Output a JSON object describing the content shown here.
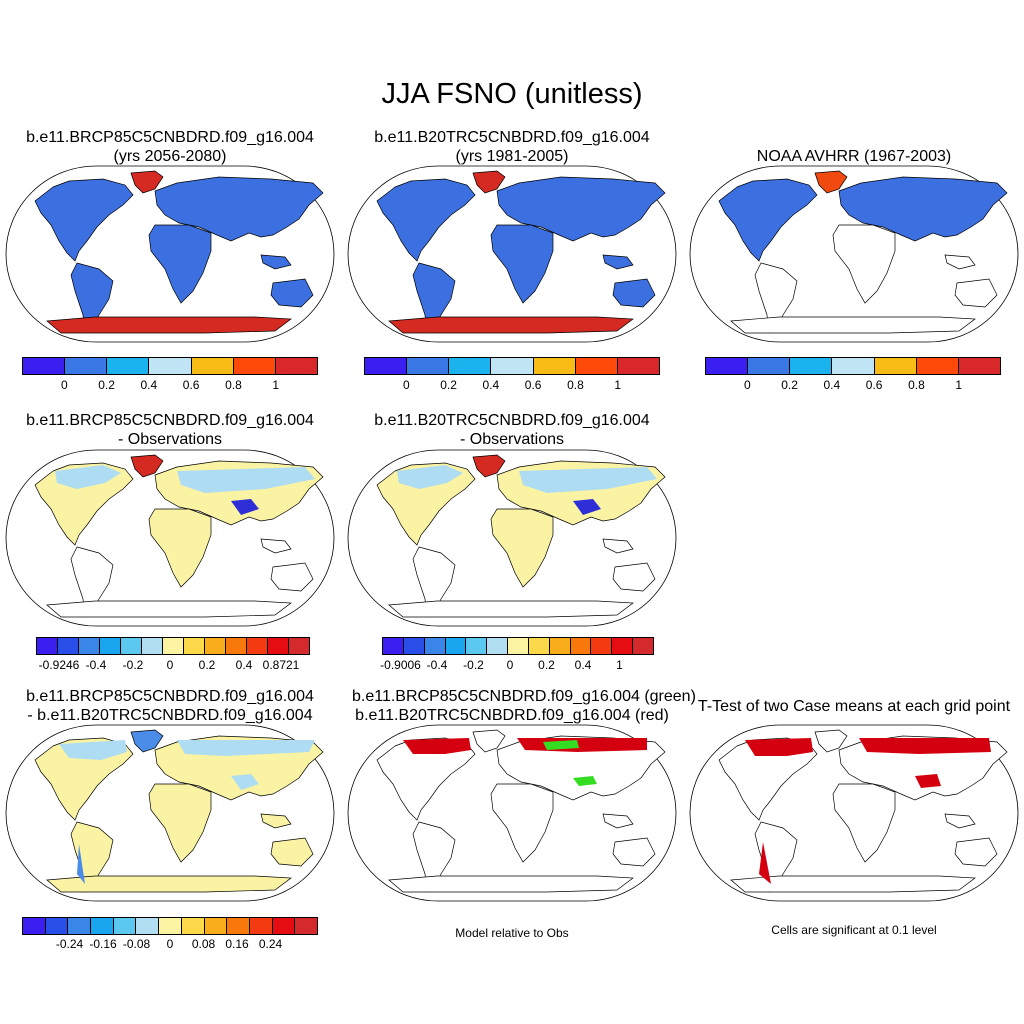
{
  "main_title": "JJA FSNO (unitless)",
  "colors": {
    "land_blue": "#3c6fe0",
    "high_red": "#d42a22",
    "orange_red": "#f04a10",
    "pale_yellow": "#fbf3a4",
    "light_blue": "#aedcf2",
    "mid_blue": "#4b8ce8",
    "deep_blue": "#2f2fd8",
    "green": "#33dd22",
    "sig_red": "#d40010",
    "outline": "#000000"
  },
  "panels": {
    "p1": {
      "title1": "b.e11.BRCP85C5CNBDRD.f09_g16.004",
      "title2": "(yrs 2056-2080)"
    },
    "p2": {
      "title1": "b.e11.B20TRC5CNBDRD.f09_g16.004",
      "title2": "(yrs 1981-2005)"
    },
    "p3": {
      "title1": "NOAA AVHRR (1967-2003)"
    },
    "p4": {
      "title1": "b.e11.BRCP85C5CNBDRD.f09_g16.004",
      "title2": "- Observations"
    },
    "p5": {
      "title1": "b.e11.B20TRC5CNBDRD.f09_g16.004",
      "title2": "- Observations"
    },
    "p6": {
      "title1": "b.e11.BRCP85C5CNBDRD.f09_g16.004",
      "title2": "- b.e11.B20TRC5CNBDRD.f09_g16.004"
    },
    "p7": {
      "title1": "b.e11.BRCP85C5CNBDRD.f09_g16.004 (green)",
      "title2": "b.e11.B20TRC5CNBDRD.f09_g16.004 (red)",
      "note": "Model relative to Obs"
    },
    "p8": {
      "title1": "T-Test of two Case means at each grid point",
      "note": "Cells are significant at 0.1 level"
    }
  },
  "colorbars": {
    "abs": {
      "colors": [
        "#3a1ff0",
        "#3a78e6",
        "#1ab3ee",
        "#bfe4f4",
        "#f9bb16",
        "#ff4a0a",
        "#d9282a"
      ],
      "ticks": [
        "0",
        "0.2",
        "0.4",
        "0.6",
        "0.8",
        "1"
      ]
    },
    "diff1": {
      "colors": [
        "#3a1ff0",
        "#2a4fe8",
        "#3a86e8",
        "#1aa6ee",
        "#5bc8ef",
        "#b2def2",
        "#fdf4a3",
        "#fcd94a",
        "#f9ad1a",
        "#f8780c",
        "#f43a10",
        "#e60d12",
        "#d42a2e"
      ],
      "ticks": [
        "-0.9246",
        "-0.4",
        "-0.2",
        "0",
        "0.2",
        "0.4",
        "0.8721"
      ]
    },
    "diff2": {
      "colors": [
        "#3a1ff0",
        "#2a4fe8",
        "#3a86e8",
        "#1aa6ee",
        "#5bc8ef",
        "#b2def2",
        "#fdf4a3",
        "#fcd94a",
        "#f9ad1a",
        "#f8780c",
        "#f43a10",
        "#e60d12",
        "#d42a2e"
      ],
      "ticks": [
        "-0.9006",
        "-0.4",
        "-0.2",
        "0",
        "0.2",
        "0.4",
        "1"
      ]
    },
    "diff3": {
      "colors": [
        "#3a1ff0",
        "#2a4fe8",
        "#3a86e8",
        "#1aa6ee",
        "#5bc8ef",
        "#b2def2",
        "#fdf4a3",
        "#fcd94a",
        "#f9ad1a",
        "#f8780c",
        "#f43a10",
        "#e60d12",
        "#d42a2e"
      ],
      "ticks": [
        "-0.24",
        "-0.16",
        "-0.08",
        "0",
        "0.08",
        "0.16",
        "0.24"
      ]
    }
  }
}
